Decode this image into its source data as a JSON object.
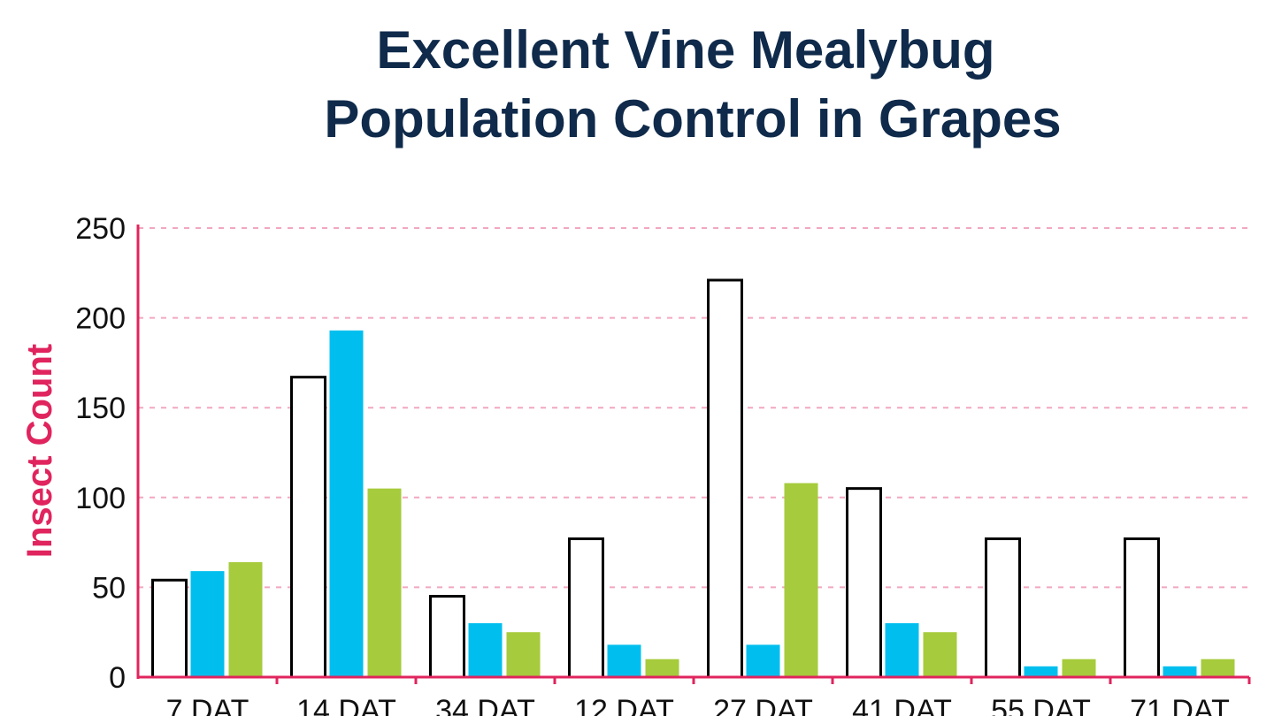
{
  "chart_data": {
    "type": "bar",
    "title": "Excellent Vine Mealybug Population Control in Grapes",
    "title_lines": [
      "Excellent Vine Mealybug",
      "Population Control in Grapes"
    ],
    "xlabel": "",
    "ylabel": "Insect Count",
    "ylim": [
      0,
      250
    ],
    "yticks": [
      0,
      50,
      100,
      150,
      200,
      250
    ],
    "grid": true,
    "legend": "none",
    "categories": [
      "7 DAT",
      "14 DAT",
      "34 DAT",
      "12 DAT",
      "27 DAT",
      "41 DAT",
      "55 DAT",
      "71 DAT"
    ],
    "series": [
      {
        "color": "#ffffff",
        "values": [
          54,
          167,
          45,
          77,
          221,
          105,
          77,
          77
        ]
      },
      {
        "color": "#00bfef",
        "values": [
          59,
          193,
          30,
          18,
          18,
          30,
          6,
          6
        ]
      },
      {
        "color": "#a6cb3c",
        "values": [
          64,
          105,
          25,
          10,
          108,
          25,
          10,
          10
        ]
      }
    ],
    "colors": {
      "axis": "#e0245e",
      "grid": "#f2a7c0",
      "title": "#0f2a4a",
      "bar_outline": "#000000"
    }
  }
}
